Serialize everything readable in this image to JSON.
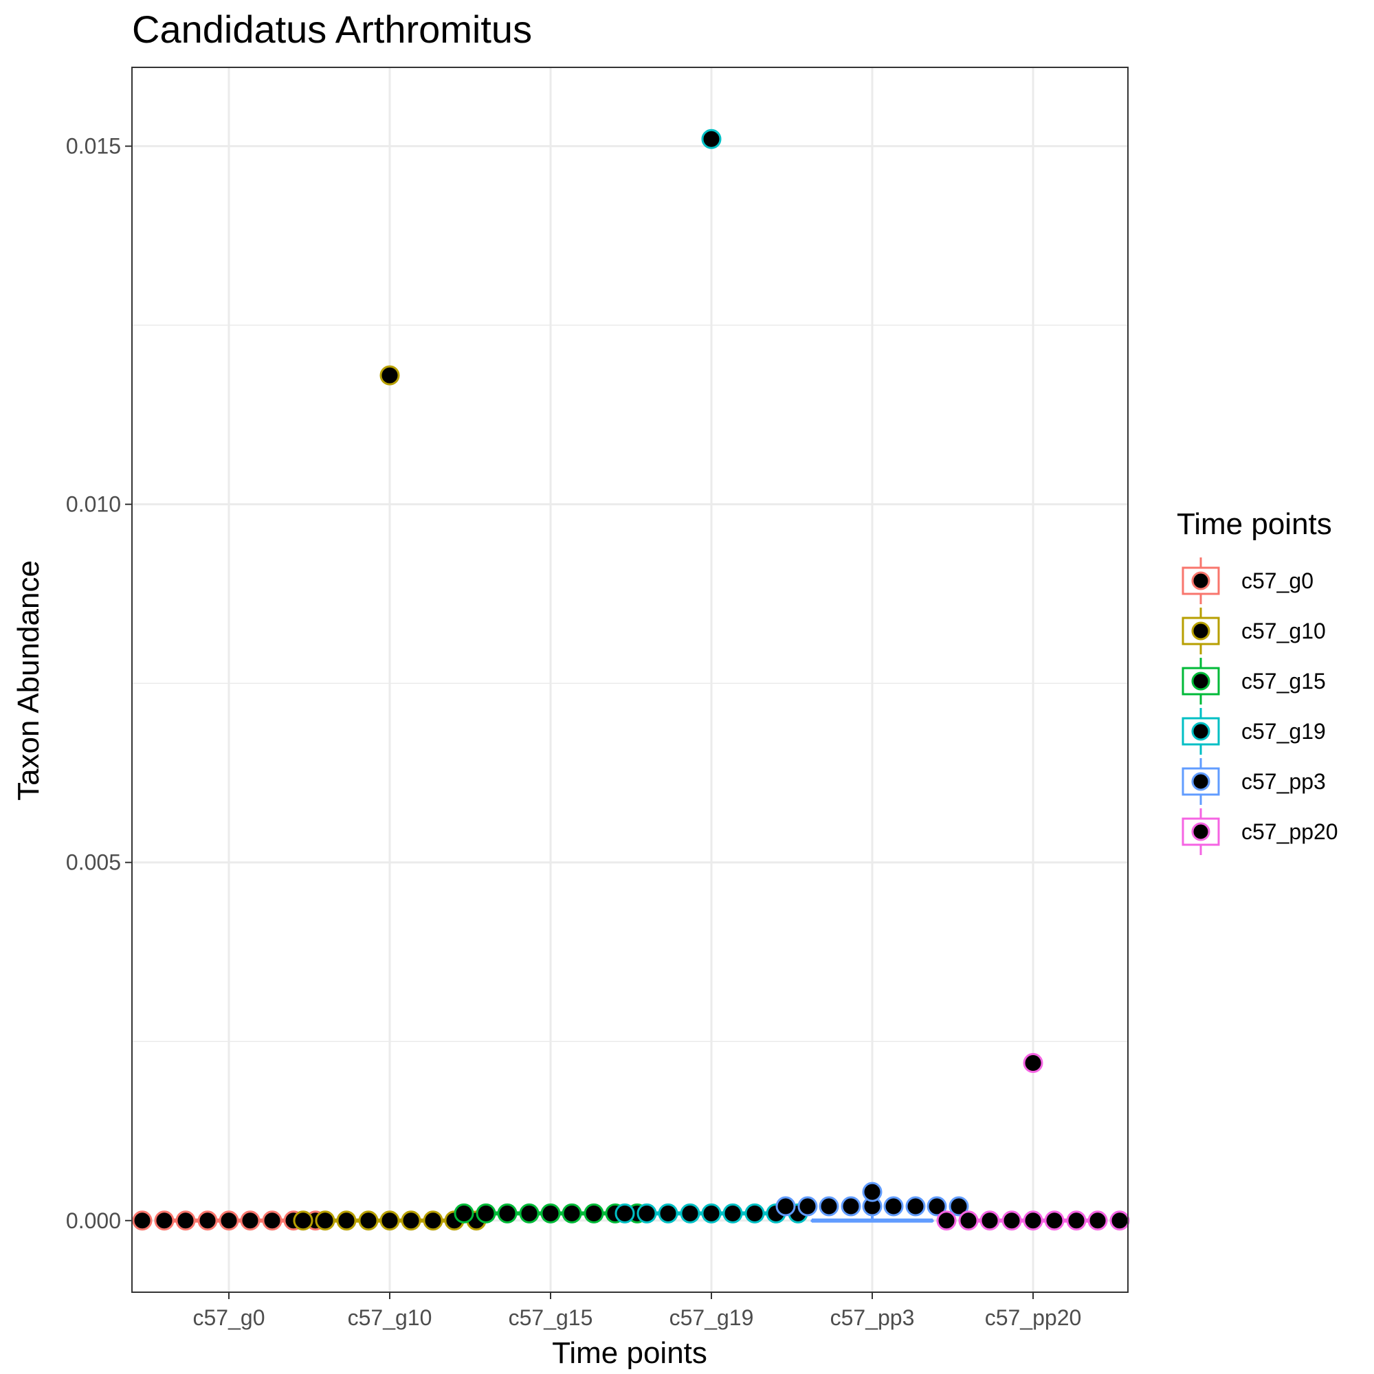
{
  "chart_data": {
    "type": "scatter",
    "title": "Candidatus Arthromitus",
    "xlabel": "Time points",
    "ylabel": "Taxon Abundance",
    "categories": [
      "c57_g0",
      "c57_g10",
      "c57_g15",
      "c57_g19",
      "c57_pp3",
      "c57_pp20"
    ],
    "yticks": [
      "0.000",
      "0.005",
      "0.010",
      "0.015"
    ],
    "ytick_values": [
      0,
      0.005,
      0.01,
      0.015
    ],
    "ylim": [
      -0.001,
      0.0161
    ],
    "grid": true,
    "legend": {
      "title": "Time points",
      "position": "right"
    },
    "series": [
      {
        "name": "c57_g0",
        "color": "#F8766D",
        "box": {
          "q1": 0,
          "median": 0,
          "q3": 0,
          "whisker_low": 0,
          "whisker_high": 0
        },
        "points": [
          0,
          0,
          0,
          0,
          0,
          0,
          0,
          0,
          0
        ]
      },
      {
        "name": "c57_g10",
        "color": "#B79F00",
        "box": {
          "q1": 0,
          "median": 0,
          "q3": 0,
          "whisker_low": 0,
          "whisker_high": 0
        },
        "outliers": [
          0.0118
        ],
        "points": [
          0,
          0,
          0,
          0,
          0,
          0,
          0,
          0,
          0
        ]
      },
      {
        "name": "c57_g15",
        "color": "#00BA38",
        "box": {
          "q1": 0.0001,
          "median": 0.0001,
          "q3": 0.0001,
          "whisker_low": 0.0001,
          "whisker_high": 0.0001
        },
        "points": [
          0.0001,
          0.0001,
          0.0001,
          0.0001,
          0.0001,
          0.0001,
          0.0001,
          0.0001,
          0.0001
        ]
      },
      {
        "name": "c57_g19",
        "color": "#00BFC4",
        "box": {
          "q1": 0.0001,
          "median": 0.0001,
          "q3": 0.0001,
          "whisker_low": 0.0001,
          "whisker_high": 0.0001
        },
        "outliers": [
          0.0151
        ],
        "points": [
          0.0001,
          0.0001,
          0.0001,
          0.0001,
          0.0001,
          0.0001,
          0.0001,
          0.0001,
          0.0001
        ]
      },
      {
        "name": "c57_pp3",
        "color": "#619CFF",
        "box": {
          "q1": 0,
          "median": 0,
          "q3": 0,
          "whisker_low": 0,
          "whisker_high": 0.0002
        },
        "outliers": [
          0.0004
        ],
        "points": [
          0.0002,
          0.0002,
          0.0002,
          0.0002,
          0.0002,
          0.0002,
          0.0002,
          0.0002,
          0.0002
        ]
      },
      {
        "name": "c57_pp20",
        "color": "#F564E3",
        "box": {
          "q1": 0,
          "median": 0,
          "q3": 0,
          "whisker_low": 0,
          "whisker_high": 0
        },
        "outliers": [
          0.0022
        ],
        "points": [
          0,
          0,
          0,
          0,
          0,
          0,
          0,
          0,
          0
        ]
      }
    ]
  }
}
